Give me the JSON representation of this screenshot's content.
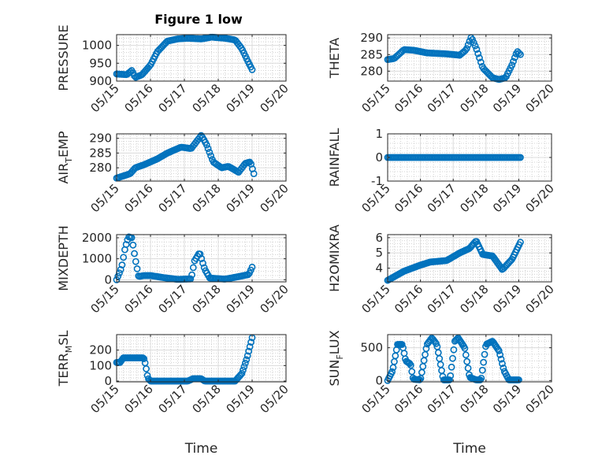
{
  "figure": {
    "title": "Figure 1 low",
    "marker_color": "#0072BD"
  },
  "chart_data": [
    {
      "type": "scatter",
      "title": "Figure 1 low",
      "ylabel": "PRESSURE",
      "ylabel_main": "PRESSURE",
      "ylabel_sub": "",
      "ylabel_rest": "",
      "ylim": [
        900,
        1030
      ],
      "yticks": [
        900,
        950,
        1000
      ],
      "ytick_labels": [
        "900",
        "950",
        "1000"
      ],
      "xlim": [
        0,
        5
      ],
      "xticks": [
        0,
        1,
        2,
        3,
        4,
        5
      ],
      "xtick_labels": [
        "05/15",
        "05/16",
        "05/17",
        "05/18",
        "05/19",
        "05/20"
      ],
      "xlabel": "",
      "keypoints": [
        [
          0.0,
          920
        ],
        [
          0.3,
          918
        ],
        [
          0.45,
          930
        ],
        [
          0.55,
          910
        ],
        [
          0.75,
          918
        ],
        [
          1.0,
          945
        ],
        [
          1.2,
          982
        ],
        [
          1.5,
          1012
        ],
        [
          1.8,
          1018
        ],
        [
          2.1,
          1020
        ],
        [
          2.5,
          1018
        ],
        [
          2.8,
          1023
        ],
        [
          3.2,
          1020
        ],
        [
          3.5,
          1015
        ],
        [
          3.7,
          990
        ],
        [
          3.85,
          960
        ],
        [
          4.0,
          932
        ]
      ],
      "n": 100
    },
    {
      "type": "scatter",
      "title": "",
      "ylabel": "THETA",
      "ylabel_main": "THETA",
      "ylabel_sub": "",
      "ylabel_rest": "",
      "ylim": [
        277,
        291
      ],
      "yticks": [
        280,
        285,
        290
      ],
      "ytick_labels": [
        "280",
        "285",
        "290"
      ],
      "xlim": [
        0,
        5
      ],
      "xticks": [
        0,
        1,
        2,
        3,
        4,
        5
      ],
      "xtick_labels": [
        "05/15",
        "05/16",
        "05/17",
        "05/18",
        "05/19",
        "05/20"
      ],
      "xlabel": "",
      "keypoints": [
        [
          0.0,
          283.5
        ],
        [
          0.2,
          283.8
        ],
        [
          0.5,
          286.5
        ],
        [
          0.8,
          286.3
        ],
        [
          1.2,
          285.5
        ],
        [
          1.8,
          285.2
        ],
        [
          2.2,
          284.8
        ],
        [
          2.4,
          286.5
        ],
        [
          2.55,
          290.3
        ],
        [
          2.7,
          287
        ],
        [
          2.9,
          281
        ],
        [
          3.2,
          278
        ],
        [
          3.4,
          277.5
        ],
        [
          3.6,
          278
        ],
        [
          3.8,
          282
        ],
        [
          3.95,
          286
        ],
        [
          4.05,
          285
        ]
      ],
      "n": 95
    },
    {
      "type": "scatter",
      "title": "",
      "ylabel": "AIR_TEMP",
      "ylabel_main": "AIR",
      "ylabel_sub": "T",
      "ylabel_rest": "EMP",
      "ylim": [
        275.5,
        291.5
      ],
      "yticks": [
        280,
        285,
        290
      ],
      "ytick_labels": [
        "280",
        "285",
        "290"
      ],
      "xlim": [
        0,
        5
      ],
      "xticks": [
        0,
        1,
        2,
        3,
        4,
        5
      ],
      "xtick_labels": [
        "05/15",
        "05/16",
        "05/17",
        "05/18",
        "05/19",
        "05/20"
      ],
      "xlabel": "",
      "keypoints": [
        [
          0.0,
          276.5
        ],
        [
          0.4,
          278
        ],
        [
          0.55,
          280
        ],
        [
          0.8,
          281
        ],
        [
          1.2,
          283
        ],
        [
          1.5,
          285
        ],
        [
          1.9,
          287
        ],
        [
          2.2,
          286.5
        ],
        [
          2.5,
          291
        ],
        [
          2.65,
          288
        ],
        [
          2.85,
          282
        ],
        [
          3.1,
          280
        ],
        [
          3.3,
          280.5
        ],
        [
          3.6,
          278.5
        ],
        [
          3.8,
          281.5
        ],
        [
          3.95,
          282
        ],
        [
          4.05,
          278
        ]
      ],
      "n": 100
    },
    {
      "type": "scatter",
      "title": "",
      "ylabel": "RAINFALL",
      "ylabel_main": "RAINFALL",
      "ylabel_sub": "",
      "ylabel_rest": "",
      "ylim": [
        -1,
        1
      ],
      "yticks": [
        -1,
        0,
        1
      ],
      "ytick_labels": [
        "-1",
        "0",
        "1"
      ],
      "xlim": [
        0,
        5
      ],
      "xticks": [
        0,
        1,
        2,
        3,
        4,
        5
      ],
      "xtick_labels": [
        "05/15",
        "05/16",
        "05/17",
        "05/18",
        "05/19",
        "05/20"
      ],
      "xlabel": "",
      "keypoints": [
        [
          0.0,
          0
        ],
        [
          4.05,
          0
        ]
      ],
      "n": 95
    },
    {
      "type": "scatter",
      "title": "",
      "ylabel": "MIXDEPTH",
      "ylabel_main": "MIXDEPTH",
      "ylabel_sub": "",
      "ylabel_rest": "",
      "ylim": [
        -100,
        2150
      ],
      "yticks": [
        0,
        1000,
        2000
      ],
      "ytick_labels": [
        "0",
        "1000",
        "2000"
      ],
      "xlim": [
        0,
        5
      ],
      "xticks": [
        0,
        1,
        2,
        3,
        4,
        5
      ],
      "xtick_labels": [
        "05/15",
        "05/16",
        "05/17",
        "05/18",
        "05/19",
        "05/20"
      ],
      "xlabel": "",
      "keypoints": [
        [
          0.0,
          0
        ],
        [
          0.15,
          600
        ],
        [
          0.25,
          1500
        ],
        [
          0.35,
          2050
        ],
        [
          0.45,
          2000
        ],
        [
          0.55,
          1000
        ],
        [
          0.65,
          150
        ],
        [
          0.8,
          200
        ],
        [
          1.0,
          200
        ],
        [
          1.4,
          100
        ],
        [
          1.8,
          20
        ],
        [
          2.2,
          40
        ],
        [
          2.3,
          900
        ],
        [
          2.45,
          1300
        ],
        [
          2.6,
          500
        ],
        [
          2.75,
          80
        ],
        [
          3.2,
          30
        ],
        [
          3.6,
          150
        ],
        [
          3.9,
          250
        ],
        [
          4.0,
          600
        ]
      ],
      "n": 100
    },
    {
      "type": "scatter",
      "title": "",
      "ylabel": "H2OMIXRA",
      "ylabel_main": "H2OMIXRA",
      "ylabel_sub": "",
      "ylabel_rest": "",
      "ylim": [
        3.1,
        6.2
      ],
      "yticks": [
        4,
        5,
        6
      ],
      "ytick_labels": [
        "4",
        "5",
        "6"
      ],
      "xlim": [
        0,
        5
      ],
      "xticks": [
        0,
        1,
        2,
        3,
        4,
        5
      ],
      "xtick_labels": [
        "05/15",
        "05/16",
        "05/17",
        "05/18",
        "05/19",
        "05/20"
      ],
      "xlabel": "",
      "keypoints": [
        [
          0.0,
          3.2
        ],
        [
          0.5,
          3.8
        ],
        [
          1.0,
          4.2
        ],
        [
          1.3,
          4.4
        ],
        [
          1.8,
          4.5
        ],
        [
          2.2,
          5.0
        ],
        [
          2.5,
          5.3
        ],
        [
          2.7,
          5.8
        ],
        [
          2.9,
          4.9
        ],
        [
          3.2,
          4.8
        ],
        [
          3.5,
          3.9
        ],
        [
          3.8,
          4.6
        ],
        [
          4.05,
          5.7
        ]
      ],
      "n": 110
    },
    {
      "type": "scatter",
      "title": "",
      "ylabel": "TERR_MSL",
      "ylabel_main": "TERR",
      "ylabel_sub": "M",
      "ylabel_rest": "SL",
      "ylim": [
        -5,
        300
      ],
      "yticks": [
        0,
        100,
        200
      ],
      "ytick_labels": [
        "0",
        "100",
        "200"
      ],
      "xlim": [
        0,
        5
      ],
      "xticks": [
        0,
        1,
        2,
        3,
        4,
        5
      ],
      "xtick_labels": [
        "05/15",
        "05/16",
        "05/17",
        "05/18",
        "05/19",
        "05/20"
      ],
      "xlabel": "Time",
      "keypoints": [
        [
          0.0,
          120
        ],
        [
          0.1,
          120
        ],
        [
          0.2,
          150
        ],
        [
          0.8,
          150
        ],
        [
          0.85,
          110
        ],
        [
          0.92,
          20
        ],
        [
          1.0,
          0
        ],
        [
          2.1,
          0
        ],
        [
          2.25,
          15
        ],
        [
          2.5,
          15
        ],
        [
          2.6,
          0
        ],
        [
          3.5,
          0
        ],
        [
          3.7,
          50
        ],
        [
          3.85,
          150
        ],
        [
          4.0,
          280
        ]
      ],
      "n": 120
    },
    {
      "type": "scatter",
      "title": "",
      "ylabel": "SUN_FLUX",
      "ylabel_main": "SUN",
      "ylabel_sub": "F",
      "ylabel_rest": "LUX",
      "ylim": [
        -20,
        700
      ],
      "yticks": [
        0,
        500
      ],
      "ytick_labels": [
        "0",
        "500"
      ],
      "xlim": [
        0,
        5
      ],
      "xticks": [
        0,
        1,
        2,
        3,
        4,
        5
      ],
      "xtick_labels": [
        "05/15",
        "05/16",
        "05/17",
        "05/18",
        "05/19",
        "05/20"
      ],
      "xlabel": "Time",
      "keypoints": [
        [
          0.0,
          0
        ],
        [
          0.15,
          150
        ],
        [
          0.3,
          550
        ],
        [
          0.45,
          550
        ],
        [
          0.55,
          300
        ],
        [
          0.7,
          250
        ],
        [
          0.78,
          20
        ],
        [
          1.0,
          10
        ],
        [
          1.2,
          550
        ],
        [
          1.35,
          650
        ],
        [
          1.5,
          550
        ],
        [
          1.7,
          10
        ],
        [
          1.9,
          10
        ],
        [
          2.05,
          600
        ],
        [
          2.15,
          650
        ],
        [
          2.35,
          500
        ],
        [
          2.5,
          50
        ],
        [
          2.7,
          10
        ],
        [
          2.85,
          10
        ],
        [
          3.0,
          550
        ],
        [
          3.2,
          600
        ],
        [
          3.4,
          450
        ],
        [
          3.55,
          150
        ],
        [
          3.7,
          10
        ],
        [
          4.0,
          10
        ]
      ],
      "n": 120
    }
  ]
}
